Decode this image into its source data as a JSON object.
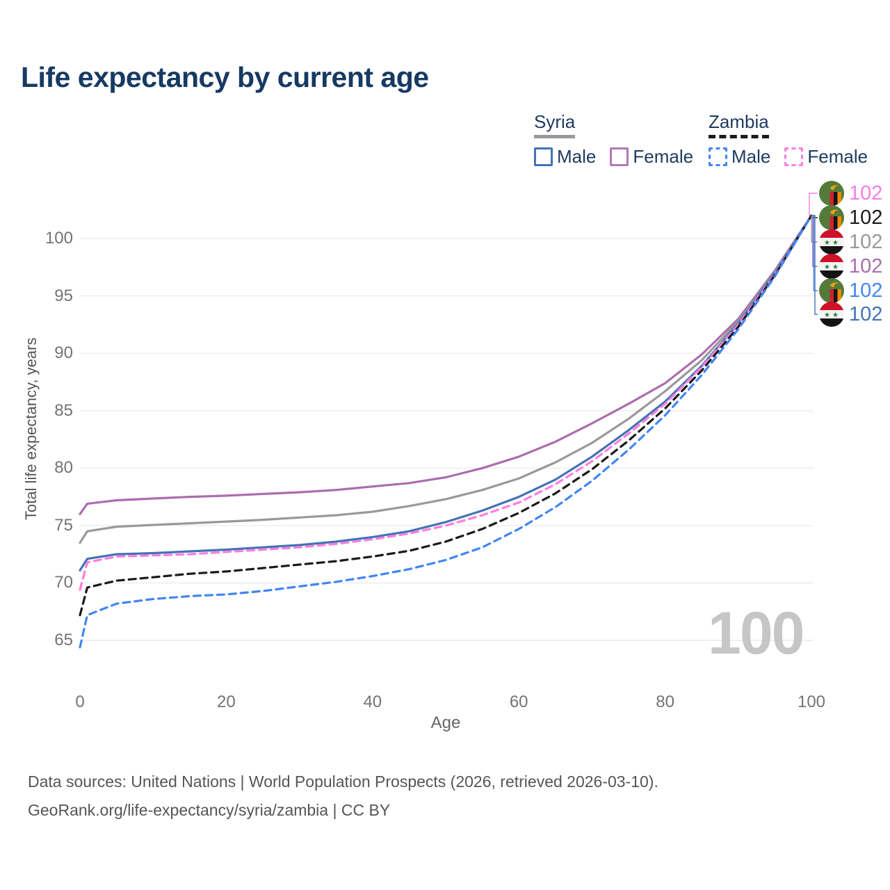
{
  "title": "Life expectancy by current age",
  "watermark": "100",
  "legend": {
    "groups": [
      {
        "name": "Syria",
        "line_style": "solid",
        "underline_color": "#999999",
        "items": [
          {
            "label": "Male",
            "color": "#4472b5",
            "dashed": false
          },
          {
            "label": "Female",
            "color": "#b279b4",
            "dashed": false
          }
        ]
      },
      {
        "name": "Zambia",
        "line_style": "dashed",
        "underline_color": "#1a1a1a",
        "items": [
          {
            "label": "Male",
            "color": "#4285f4",
            "dashed": true
          },
          {
            "label": "Female",
            "color": "#ff7ce0",
            "dashed": true
          }
        ]
      }
    ]
  },
  "chart_data": {
    "type": "line",
    "title": "Life expectancy by current age",
    "xlabel": "Age",
    "ylabel": "Total life expectancy, years",
    "x_ticks": [
      0,
      20,
      40,
      60,
      80,
      100
    ],
    "y_ticks": [
      65,
      70,
      75,
      80,
      85,
      90,
      95,
      100
    ],
    "xlim": [
      0,
      100
    ],
    "ylim": [
      62,
      104
    ],
    "grid": "horizontal",
    "legend_position": "top-right",
    "x": [
      0,
      1,
      5,
      10,
      15,
      20,
      25,
      30,
      35,
      40,
      45,
      50,
      55,
      60,
      65,
      70,
      75,
      80,
      85,
      90,
      95,
      100
    ],
    "series": [
      {
        "name": "Syria Female",
        "country": "Syria",
        "sex": "Female",
        "color": "#ab6dad",
        "dash": "solid",
        "flag": "syria",
        "values": [
          76.0,
          76.9,
          77.2,
          77.35,
          77.5,
          77.6,
          77.75,
          77.9,
          78.1,
          78.4,
          78.7,
          79.2,
          80.0,
          81.0,
          82.3,
          83.9,
          85.6,
          87.4,
          89.9,
          93.0,
          97.2,
          102
        ]
      },
      {
        "name": "Syria Both sexes",
        "country": "Syria",
        "sex": "Both sexes",
        "color": "#999999",
        "dash": "solid",
        "flag": "syria",
        "values": [
          73.5,
          74.5,
          74.9,
          75.05,
          75.2,
          75.35,
          75.5,
          75.7,
          75.9,
          76.2,
          76.7,
          77.3,
          78.1,
          79.1,
          80.5,
          82.2,
          84.3,
          86.7,
          89.4,
          92.8,
          97.1,
          102
        ]
      },
      {
        "name": "Syria Male",
        "country": "Syria",
        "sex": "Male",
        "color": "#4472b5",
        "dash": "solid",
        "flag": "syria",
        "values": [
          71.1,
          72.1,
          72.5,
          72.6,
          72.75,
          72.9,
          73.1,
          73.3,
          73.6,
          74.0,
          74.5,
          75.3,
          76.3,
          77.5,
          79.0,
          81.0,
          83.3,
          85.8,
          88.9,
          92.6,
          97.0,
          102
        ]
      },
      {
        "name": "Zambia Female",
        "country": "Zambia",
        "sex": "Female",
        "color": "#ff7ce0",
        "dash": "dashed",
        "flag": "zambia",
        "values": [
          69.4,
          71.8,
          72.3,
          72.4,
          72.5,
          72.7,
          72.9,
          73.1,
          73.4,
          73.8,
          74.3,
          75.0,
          75.9,
          77.0,
          78.6,
          80.6,
          83.0,
          85.6,
          88.8,
          92.5,
          96.9,
          102
        ]
      },
      {
        "name": "Zambia Both sexes",
        "country": "Zambia",
        "sex": "Both sexes",
        "color": "#1a1a1a",
        "dash": "dashed",
        "flag": "zambia",
        "values": [
          67.2,
          69.6,
          70.2,
          70.5,
          70.8,
          71.0,
          71.3,
          71.6,
          71.9,
          72.3,
          72.8,
          73.6,
          74.7,
          76.1,
          77.8,
          79.9,
          82.4,
          85.2,
          88.5,
          92.3,
          96.8,
          102
        ]
      },
      {
        "name": "Zambia Male",
        "country": "Zambia",
        "sex": "Male",
        "color": "#4285f4",
        "dash": "dashed",
        "flag": "zambia",
        "values": [
          64.4,
          67.2,
          68.2,
          68.6,
          68.85,
          69.0,
          69.3,
          69.7,
          70.1,
          70.6,
          71.2,
          72.0,
          73.1,
          74.7,
          76.6,
          78.9,
          81.6,
          84.6,
          88.1,
          92.1,
          96.7,
          102
        ]
      }
    ],
    "end_labels": [
      {
        "series": "Zambia Female",
        "value": "102",
        "color": "#ff7ce0",
        "flag": "zambia"
      },
      {
        "series": "Zambia Both sexes",
        "value": "102",
        "color": "#1a1a1a",
        "flag": "zambia"
      },
      {
        "series": "Syria Both sexes",
        "value": "102",
        "color": "#999999",
        "flag": "syria"
      },
      {
        "series": "Syria Female",
        "value": "102",
        "color": "#ab6dad",
        "flag": "syria"
      },
      {
        "series": "Zambia Male",
        "value": "102",
        "color": "#4285f4",
        "flag": "zambia"
      },
      {
        "series": "Syria Male",
        "value": "102",
        "color": "#4472b5",
        "flag": "syria"
      }
    ],
    "watermark_age": "100"
  },
  "footer": {
    "line1": "Data sources: United Nations | World Population Prospects (2026, retrieved 2026-03-10).",
    "line2": "GeoRank.org/life-expectancy/syria/zambia | CC BY"
  }
}
